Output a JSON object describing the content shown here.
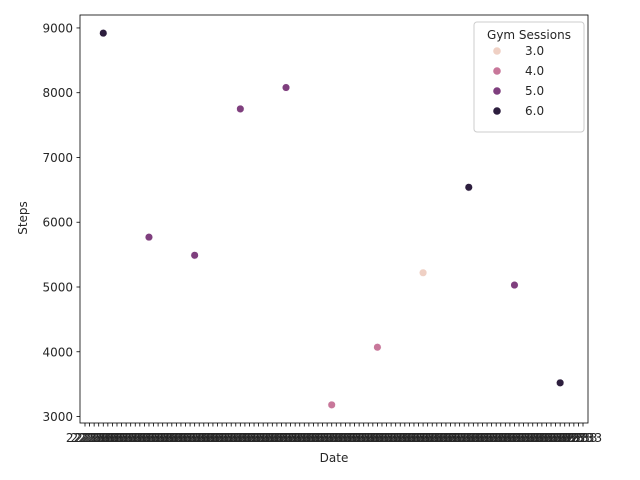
{
  "chart_data": {
    "type": "scatter",
    "title": "",
    "xlabel": "Date",
    "ylabel": "Steps",
    "legend": {
      "title": "Gym Sessions",
      "position": "top-right",
      "entries": [
        {
          "label": "3.0",
          "value": 3,
          "color": "#efd0c4"
        },
        {
          "label": "4.0",
          "value": 4,
          "color": "#c8779a"
        },
        {
          "label": "5.0",
          "value": 5,
          "color": "#7f3f7e"
        },
        {
          "label": "6.0",
          "value": 6,
          "color": "#2d1e3e"
        }
      ]
    },
    "ylim": [
      2900,
      9200
    ],
    "yticks": [
      3000,
      4000,
      5000,
      6000,
      7000,
      8000,
      9000
    ],
    "x_tick_count": 110,
    "x_tick_text": "22233",
    "grid": false,
    "points": [
      {
        "x": 4,
        "y": 8920,
        "gym": 6
      },
      {
        "x": 14,
        "y": 5770,
        "gym": 5
      },
      {
        "x": 24,
        "y": 5490,
        "gym": 5
      },
      {
        "x": 34,
        "y": 7750,
        "gym": 5
      },
      {
        "x": 44,
        "y": 8080,
        "gym": 5
      },
      {
        "x": 54,
        "y": 3180,
        "gym": 4
      },
      {
        "x": 64,
        "y": 4070,
        "gym": 4
      },
      {
        "x": 74,
        "y": 5220,
        "gym": 3
      },
      {
        "x": 84,
        "y": 6540,
        "gym": 6
      },
      {
        "x": 94,
        "y": 5030,
        "gym": 5
      },
      {
        "x": 104,
        "y": 3520,
        "gym": 6
      }
    ]
  }
}
